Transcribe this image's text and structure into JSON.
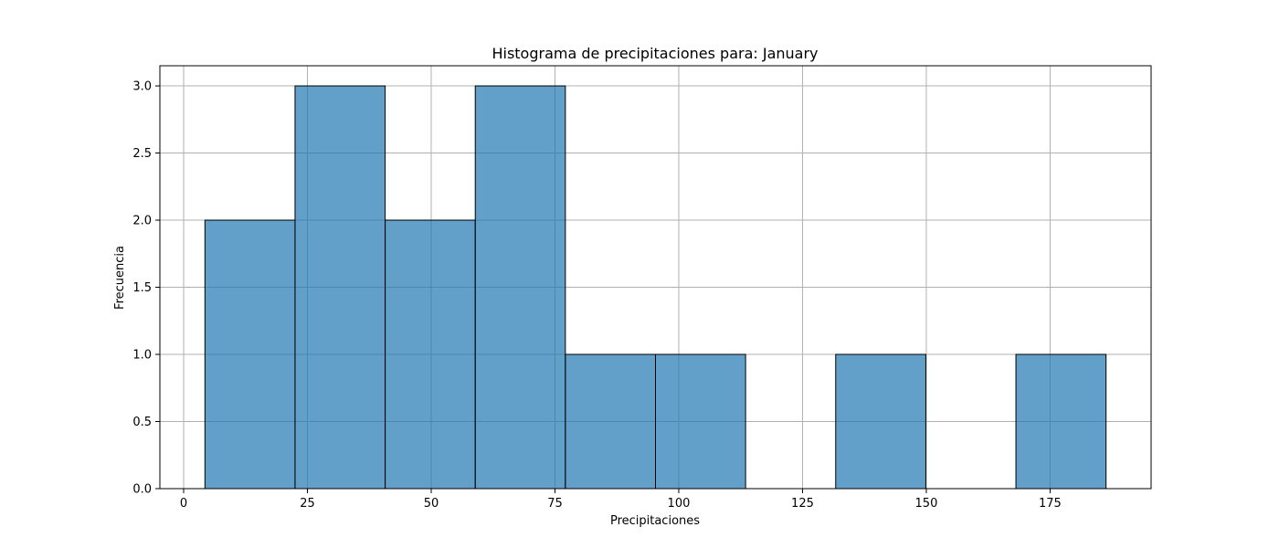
{
  "chart_data": {
    "type": "bar",
    "subtype": "histogram",
    "title": "Histograma de precipitaciones para: January",
    "xlabel": "Precipitaciones",
    "ylabel": "Frecuencia",
    "bins": [
      {
        "start": 4.3,
        "end": 22.5,
        "count": 2
      },
      {
        "start": 22.5,
        "end": 40.7,
        "count": 3
      },
      {
        "start": 40.7,
        "end": 58.9,
        "count": 2
      },
      {
        "start": 58.9,
        "end": 77.1,
        "count": 3
      },
      {
        "start": 77.1,
        "end": 95.3,
        "count": 1
      },
      {
        "start": 95.3,
        "end": 113.5,
        "count": 1
      },
      {
        "start": 113.5,
        "end": 131.7,
        "count": 0
      },
      {
        "start": 131.7,
        "end": 149.9,
        "count": 1
      },
      {
        "start": 149.9,
        "end": 168.1,
        "count": 0
      },
      {
        "start": 168.1,
        "end": 186.3,
        "count": 1
      }
    ],
    "xlim": [
      -4.8,
      195.4
    ],
    "ylim": [
      0,
      3.15
    ],
    "xticks": [
      0,
      25,
      50,
      75,
      100,
      125,
      150,
      175
    ],
    "xtick_labels": [
      "0",
      "25",
      "50",
      "75",
      "100",
      "125",
      "150",
      "175"
    ],
    "yticks": [
      0,
      0.5,
      1.0,
      1.5,
      2.0,
      2.5,
      3.0
    ],
    "ytick_labels": [
      "0.0",
      "0.5",
      "1.0",
      "1.5",
      "2.0",
      "2.5",
      "3.0"
    ],
    "grid": true,
    "bar_color": "#1f77b4",
    "bar_opacity": 0.7,
    "edge_color": "#000000"
  }
}
